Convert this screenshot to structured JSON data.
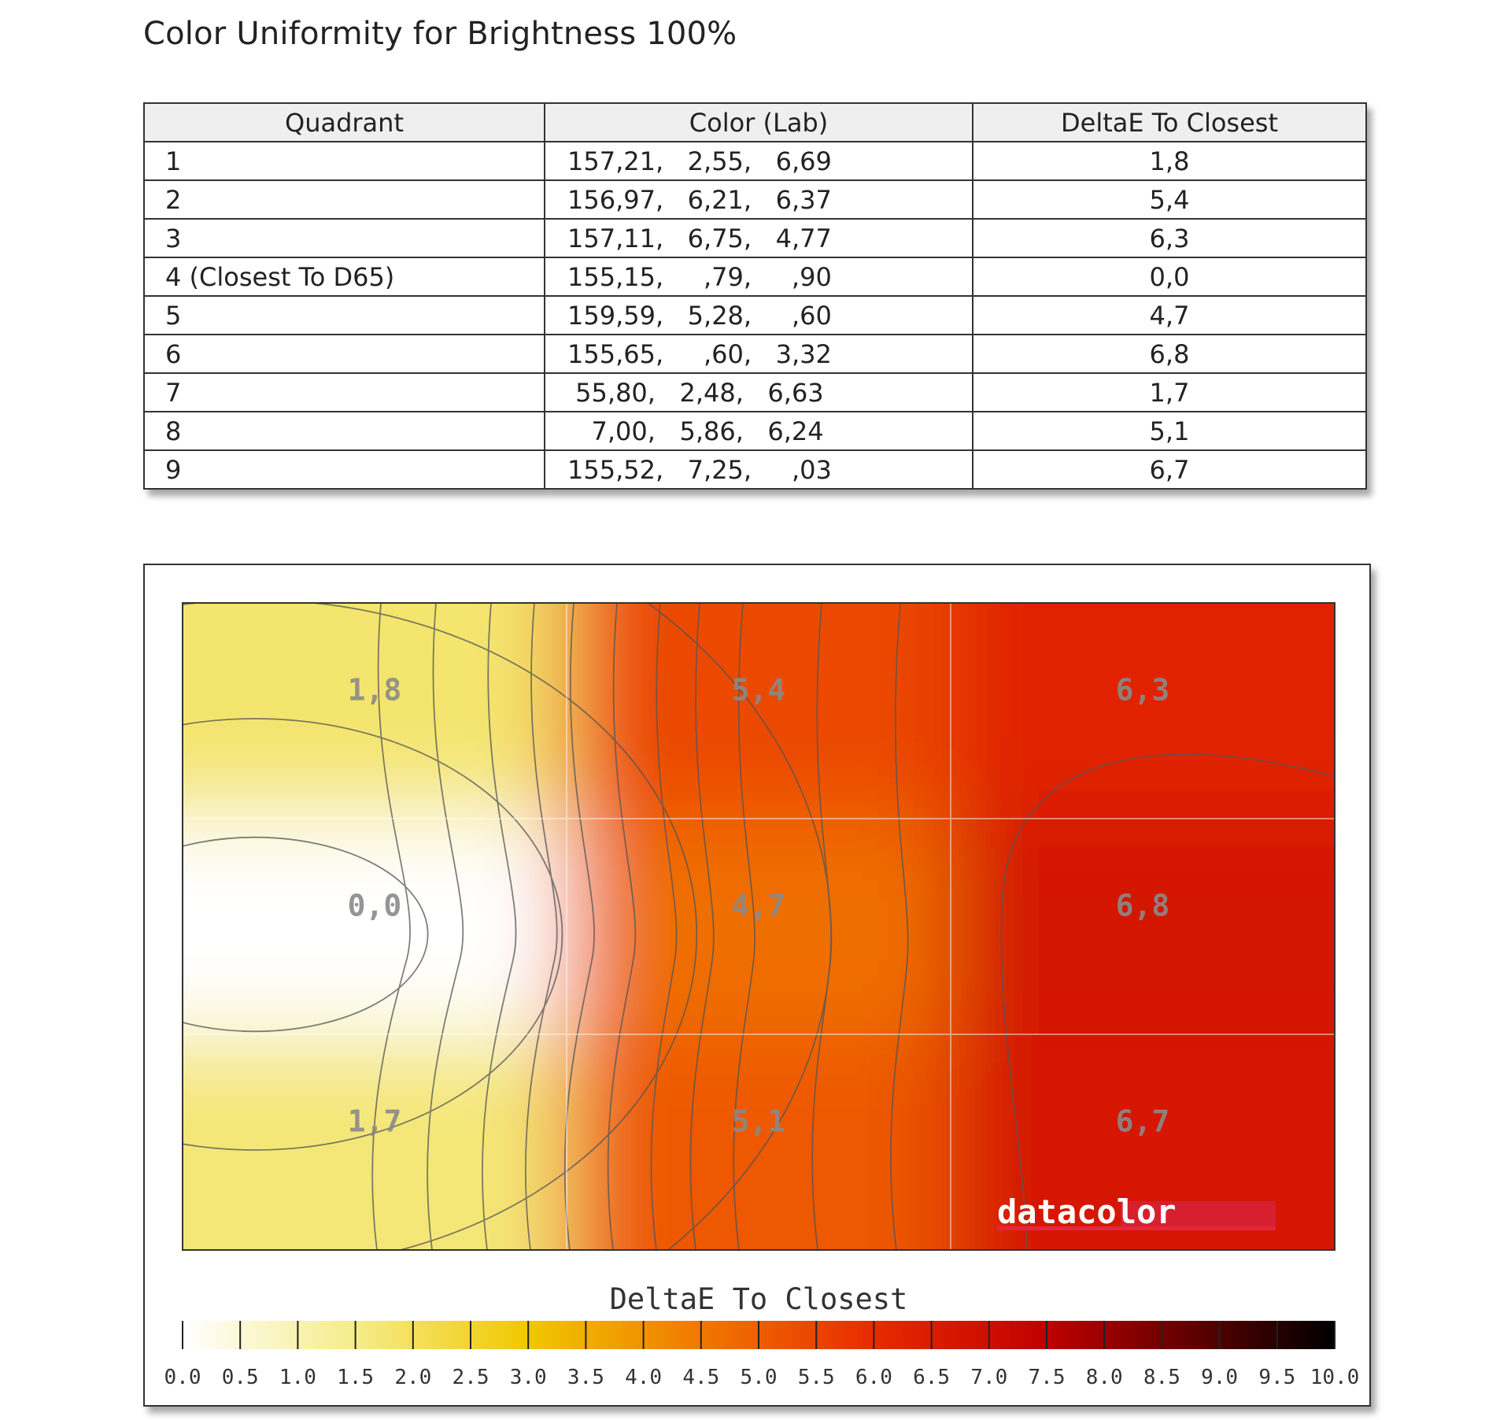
{
  "title": "Color Uniformity for Brightness 100%",
  "table": {
    "headers": [
      "Quadrant",
      "Color (Lab)",
      "DeltaE To Closest"
    ],
    "rows": [
      {
        "quadrant": "1",
        "lab": "157,21,   2,55,   6,69",
        "deltae": "1,8"
      },
      {
        "quadrant": "2",
        "lab": "156,97,   6,21,   6,37",
        "deltae": "5,4"
      },
      {
        "quadrant": "3",
        "lab": "157,11,   6,75,   4,77",
        "deltae": "6,3"
      },
      {
        "quadrant": "4 (Closest To D65)",
        "lab": "155,15,     ,79,     ,90",
        "deltae": "0,0"
      },
      {
        "quadrant": "5",
        "lab": "159,59,   5,28,     ,60",
        "deltae": "4,7"
      },
      {
        "quadrant": "6",
        "lab": "155,65,     ,60,   3,32",
        "deltae": "6,8"
      },
      {
        "quadrant": "7",
        "lab": " 55,80,   2,48,   6,63",
        "deltae": "1,7"
      },
      {
        "quadrant": "8",
        "lab": "   7,00,   5,86,   6,24",
        "deltae": "5,1"
      },
      {
        "quadrant": "9",
        "lab": "155,52,   7,25,     ,03",
        "deltae": "6,7"
      }
    ]
  },
  "chart_data": {
    "type": "heatmap",
    "title": "DeltaE To Closest",
    "grid": [
      [
        1.8,
        5.4,
        6.3
      ],
      [
        0.0,
        4.7,
        6.8
      ],
      [
        1.7,
        5.1,
        6.7
      ]
    ],
    "cell_labels": [
      [
        "1,8",
        "5,4",
        "6,3"
      ],
      [
        "0,0",
        "4,7",
        "6,8"
      ],
      [
        "1,7",
        "5,1",
        "6,7"
      ]
    ],
    "color_scale": {
      "range": [
        0,
        10
      ],
      "tick_labels": [
        "0.0",
        "0.5",
        "1.0",
        "1.5",
        "2.0",
        "2.5",
        "3.0",
        "3.5",
        "4.0",
        "4.5",
        "5.0",
        "5.5",
        "6.0",
        "6.5",
        "7.0",
        "7.5",
        "8.0",
        "8.5",
        "9.0",
        "9.5",
        "10.0"
      ],
      "stops": [
        {
          "value": 0,
          "color": "#ffffff"
        },
        {
          "value": 1.5,
          "color": "#f5ec8a"
        },
        {
          "value": 3,
          "color": "#f0c800"
        },
        {
          "value": 4.5,
          "color": "#f07800"
        },
        {
          "value": 6,
          "color": "#e82a00"
        },
        {
          "value": 7.5,
          "color": "#c00000"
        },
        {
          "value": 10,
          "color": "#000000"
        }
      ]
    },
    "watermark": "datacolor",
    "grid_lines": true,
    "legend_placement": "bottom"
  }
}
